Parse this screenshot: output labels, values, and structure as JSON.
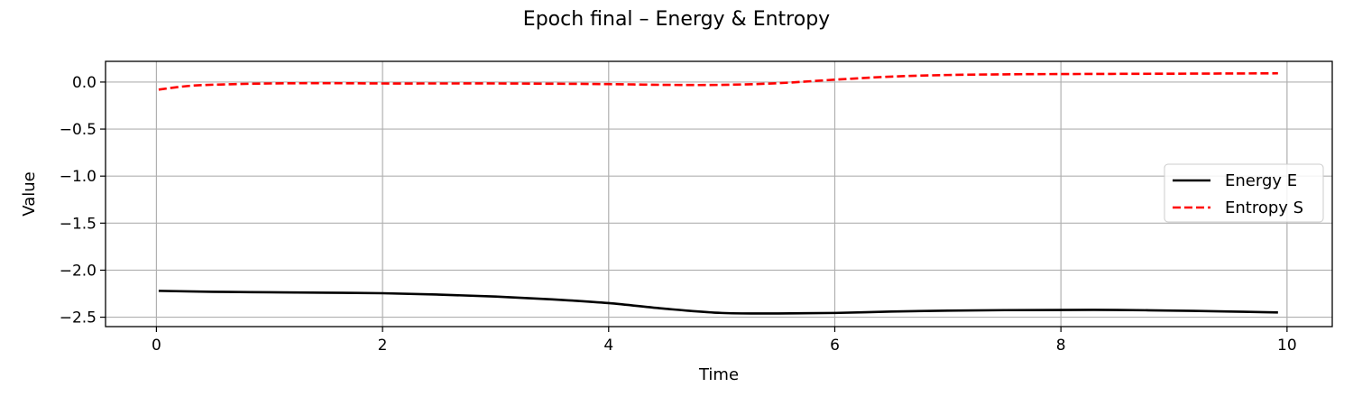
{
  "chart_data": {
    "type": "line",
    "title": "Epoch final – Energy & Entropy",
    "xlabel": "Time",
    "ylabel": "Value",
    "xlim": [
      -0.45,
      10.4
    ],
    "ylim": [
      -2.6,
      0.22
    ],
    "xticks": [
      0,
      2,
      4,
      6,
      8,
      10
    ],
    "xtick_labels": [
      "0",
      "2",
      "4",
      "6",
      "8",
      "10"
    ],
    "yticks": [
      0.0,
      -0.5,
      -1.0,
      -1.5,
      -2.0,
      -2.5
    ],
    "ytick_labels": [
      "0.0",
      "−0.5",
      "−1.0",
      "−1.5",
      "−2.0",
      "−2.5"
    ],
    "grid": true,
    "legend_position": "center-right",
    "series": [
      {
        "name": "Energy E",
        "color": "#000000",
        "style": "solid",
        "x": [
          0.02,
          0.5,
          1.0,
          1.5,
          2.0,
          2.5,
          3.0,
          3.5,
          4.0,
          4.5,
          5.0,
          5.5,
          6.0,
          6.5,
          7.0,
          7.5,
          8.0,
          8.5,
          9.0,
          9.5,
          9.92
        ],
        "y": [
          -2.22,
          -2.23,
          -2.235,
          -2.24,
          -2.245,
          -2.26,
          -2.28,
          -2.31,
          -2.35,
          -2.41,
          -2.455,
          -2.46,
          -2.455,
          -2.44,
          -2.43,
          -2.425,
          -2.423,
          -2.423,
          -2.43,
          -2.44,
          -2.45
        ]
      },
      {
        "name": "Entropy S",
        "color": "#ff0000",
        "style": "dashed",
        "x": [
          0.02,
          0.3,
          0.6,
          1.0,
          1.5,
          2.0,
          2.5,
          3.0,
          3.5,
          4.0,
          4.5,
          5.0,
          5.5,
          6.0,
          6.5,
          7.0,
          7.5,
          8.0,
          8.5,
          9.0,
          9.5,
          9.92
        ],
        "y": [
          -0.08,
          -0.04,
          -0.025,
          -0.015,
          -0.012,
          -0.015,
          -0.015,
          -0.015,
          -0.018,
          -0.022,
          -0.03,
          -0.03,
          -0.012,
          0.025,
          0.058,
          0.075,
          0.082,
          0.085,
          0.087,
          0.089,
          0.091,
          0.093
        ]
      }
    ]
  }
}
